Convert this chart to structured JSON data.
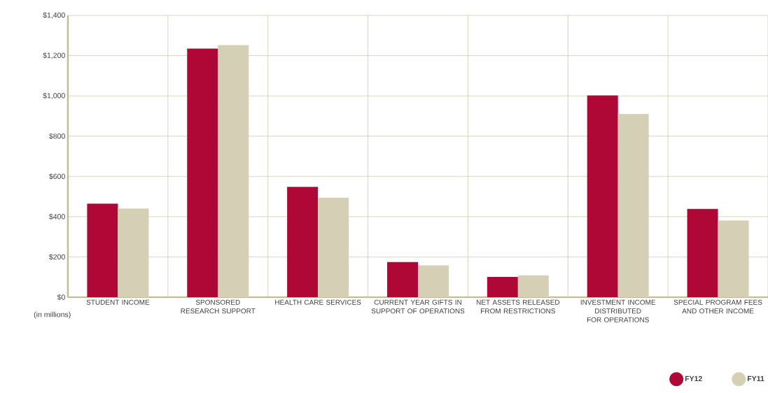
{
  "chart_data": {
    "type": "bar",
    "categories": [
      "STUDENT INCOME",
      "SPONSORED RESEARCH SUPPORT",
      "HEALTH CARE SERVICES",
      "CURRENT YEAR GIFTS IN SUPPORT OF OPERATIONS",
      "NET ASSETS RELEASED FROM RESTRICTIONS",
      "INVESTMENT INCOME DISTRIBUTED FOR OPERATIONS",
      "SPECIAL PROGRAM FEES AND OTHER INCOME"
    ],
    "series": [
      {
        "name": "FY12",
        "color": "#b00836",
        "values": [
          465,
          1235,
          548,
          175,
          101,
          1002,
          439
        ]
      },
      {
        "name": "FY11",
        "color": "#d5d0b5",
        "values": [
          440,
          1252,
          494,
          158,
          109,
          910,
          381
        ]
      }
    ],
    "ylim": [
      0,
      1400
    ],
    "yticks": [
      {
        "value": 0,
        "label": "$0"
      },
      {
        "value": 200,
        "label": "$200"
      },
      {
        "value": 400,
        "label": "$400"
      },
      {
        "value": 600,
        "label": "$600"
      },
      {
        "value": 800,
        "label": "$800"
      },
      {
        "value": 1000,
        "label": "$1,000"
      },
      {
        "value": 1200,
        "label": "$1,200"
      },
      {
        "value": 1400,
        "label": "$1,400"
      }
    ],
    "annotations": [
      "(in millions)"
    ],
    "grid": true,
    "legend": "bottom right"
  }
}
